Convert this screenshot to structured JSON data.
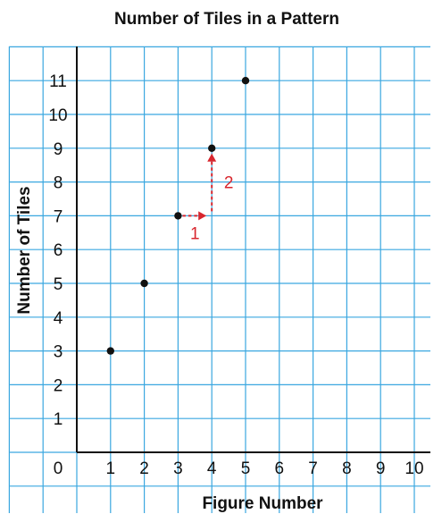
{
  "chart_data": {
    "type": "scatter",
    "title": "Number of Tiles in a Pattern",
    "xlabel": "Figure Number",
    "ylabel": "Number of Tiles",
    "origin_label": "0",
    "xlim": [
      0,
      10
    ],
    "ylim": [
      0,
      11
    ],
    "x_ticks": [
      1,
      2,
      3,
      4,
      5,
      6,
      7,
      8,
      9,
      10
    ],
    "y_ticks": [
      1,
      2,
      3,
      4,
      5,
      6,
      7,
      8,
      9,
      10,
      11
    ],
    "grid": true,
    "points": [
      {
        "x": 1,
        "y": 3
      },
      {
        "x": 2,
        "y": 5
      },
      {
        "x": 3,
        "y": 7
      },
      {
        "x": 4,
        "y": 9
      },
      {
        "x": 5,
        "y": 11
      }
    ],
    "annotations": [
      {
        "from": [
          3,
          7
        ],
        "to": [
          4,
          7
        ],
        "label": "1"
      },
      {
        "from": [
          4,
          7
        ],
        "to": [
          4,
          9
        ],
        "label": "2"
      }
    ],
    "colors": {
      "grid": "#3aa7e0",
      "axis": "#111111",
      "points": "#111111",
      "annotation": "#d8262e"
    }
  }
}
